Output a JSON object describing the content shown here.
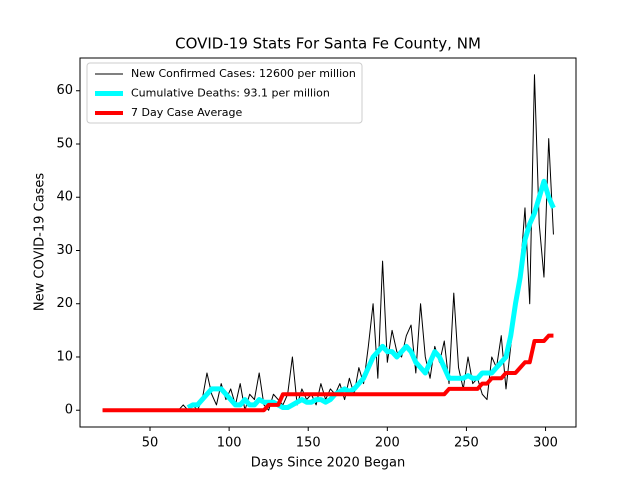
{
  "chart_data": {
    "type": "line",
    "title": "COVID-19 Stats For Santa Fe County, NM",
    "xlabel": "Days Since 2020 Began",
    "ylabel": "New COVID-19 Cases",
    "x": [
      20,
      23,
      26,
      29,
      32,
      35,
      38,
      41,
      44,
      47,
      50,
      53,
      56,
      59,
      62,
      65,
      68,
      71,
      74,
      77,
      80,
      83,
      86,
      89,
      92,
      95,
      98,
      101,
      104,
      107,
      110,
      113,
      116,
      119,
      122,
      125,
      128,
      131,
      134,
      137,
      140,
      143,
      146,
      149,
      152,
      155,
      158,
      161,
      164,
      167,
      170,
      173,
      176,
      179,
      182,
      185,
      188,
      191,
      194,
      197,
      200,
      203,
      206,
      209,
      212,
      215,
      218,
      221,
      224,
      227,
      230,
      233,
      236,
      239,
      242,
      245,
      248,
      251,
      254,
      257,
      260,
      263,
      266,
      269,
      272,
      275,
      278,
      281,
      284,
      287,
      290,
      293,
      296,
      299,
      302,
      305
    ],
    "series": [
      {
        "name": "New Confirmed Cases: 12600 per million",
        "color": "#000000",
        "width": 1,
        "values": [
          0,
          0,
          0,
          0,
          0,
          0,
          0,
          0,
          0,
          0,
          0,
          0,
          0,
          0,
          0,
          0,
          0,
          1,
          0,
          1,
          0,
          2,
          7,
          3,
          1,
          5,
          2,
          4,
          1,
          5,
          0,
          3,
          2,
          7,
          1,
          0,
          3,
          2,
          1,
          3,
          10,
          1,
          4,
          2,
          3,
          1,
          5,
          2,
          4,
          3,
          5,
          2,
          6,
          3,
          8,
          5,
          12,
          20,
          6,
          28,
          9,
          15,
          11,
          10,
          14,
          16,
          7,
          20,
          10,
          6,
          12,
          9,
          13,
          5,
          22,
          8,
          4,
          10,
          5,
          6,
          3,
          2,
          10,
          8,
          14,
          4,
          12,
          20,
          26,
          38,
          20,
          63,
          35,
          25,
          51,
          33
        ]
      },
      {
        "name": "Cumulative Deaths: 93.1 per million",
        "color": "#00ffff",
        "width": 5,
        "values": [
          null,
          null,
          null,
          null,
          null,
          null,
          null,
          null,
          null,
          null,
          null,
          null,
          null,
          null,
          null,
          null,
          null,
          null,
          0.5,
          1,
          1,
          2,
          3,
          4,
          4,
          4,
          3,
          2,
          1,
          1,
          2,
          1,
          1,
          2,
          1.5,
          1.5,
          1.5,
          1,
          0.5,
          0.5,
          1,
          1.5,
          2,
          1.5,
          1.5,
          2,
          2,
          1.5,
          2,
          3,
          3.5,
          4,
          3.5,
          4,
          5,
          6,
          8,
          10,
          11,
          12,
          11,
          11,
          10,
          11,
          12,
          11,
          9,
          8,
          7,
          9,
          11,
          10,
          8,
          6,
          6,
          6,
          6,
          6.5,
          6,
          6,
          7,
          7,
          7,
          8,
          9,
          10,
          14,
          20,
          25,
          32,
          35,
          37,
          40,
          43,
          40,
          38
        ]
      },
      {
        "name": "7 Day Case Average",
        "color": "#ff0000",
        "width": 4,
        "values": [
          0,
          0,
          0,
          0,
          0,
          0,
          0,
          0,
          0,
          0,
          0,
          0,
          0,
          0,
          0,
          0,
          0,
          0,
          0,
          0,
          0,
          0,
          0,
          0,
          0,
          0,
          0,
          0,
          0,
          0,
          0,
          0,
          0,
          0,
          0,
          1,
          1,
          1,
          3,
          3,
          3,
          3,
          3,
          3,
          3,
          3,
          3,
          3,
          3,
          3,
          3,
          3,
          3,
          3,
          3,
          3,
          3,
          3,
          3,
          3,
          3,
          3,
          3,
          3,
          3,
          3,
          3,
          3,
          3,
          3,
          3,
          3,
          3,
          4,
          4,
          4,
          4,
          4,
          4,
          4,
          5,
          5,
          6,
          6,
          6,
          7,
          7,
          7,
          8,
          9,
          9,
          13,
          13,
          13,
          14,
          14
        ]
      }
    ],
    "xlim": [
      5.75,
      319.25
    ],
    "ylim": [
      -3.15,
      66.15
    ],
    "xticks": [
      50,
      100,
      150,
      200,
      250,
      300
    ],
    "yticks": [
      0,
      10,
      20,
      30,
      40,
      50,
      60
    ],
    "legend": "upper left"
  }
}
